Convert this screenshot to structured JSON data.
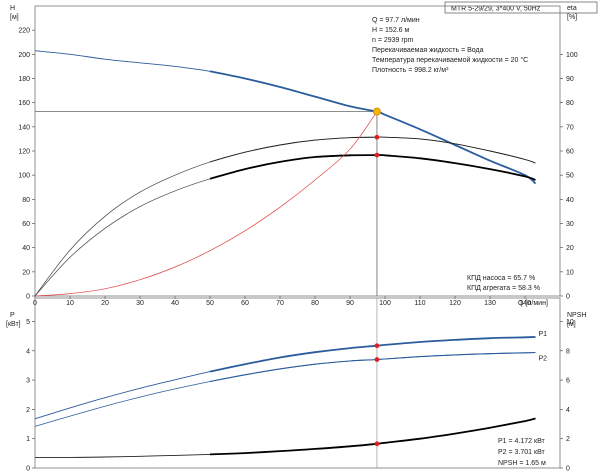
{
  "header": {
    "title": "MTR 5-29/29, 3*400 V, 50Hz"
  },
  "info_top": [
    "Q = 97.7 л/мин",
    "H = 152.6 м",
    "n = 2939 rpm",
    "Перекачиваемая жидкость = Вода",
    "Температура перекачиваемой жидкости = 20 °C",
    "Плотность = 998.2 кг/м³"
  ],
  "info_eff": [
    "КПД насоса = 65.7 %",
    "КПД агрегата = 58.3 %"
  ],
  "info_bottom": [
    "P1 = 4.172 кВт",
    "P2 = 3.701 кВт",
    "NPSH = 1.65 м"
  ],
  "colors": {
    "h_curve": "#2b5c9e",
    "p_curve": "#2b5c9e",
    "eff": "#000000",
    "system": "#e04040",
    "operating_point": "#f5b400",
    "marker": "#e02020"
  },
  "chart_data": [
    {
      "type": "line",
      "name": "top",
      "left_axis": {
        "label_line1": "H",
        "label_line2": "[м]",
        "range": [
          0,
          240
        ],
        "ticks": [
          0,
          20,
          40,
          60,
          80,
          100,
          120,
          140,
          160,
          180,
          200,
          220
        ]
      },
      "right_axis": {
        "label_line1": "eta",
        "label_line2": "[%]",
        "range": [
          0,
          120
        ],
        "ticks": [
          0,
          10,
          20,
          30,
          40,
          50,
          60,
          70,
          80,
          90,
          100
        ]
      },
      "x_axis": {
        "label": "Q [л/мин]",
        "range": [
          0,
          150
        ],
        "ticks": [
          0,
          10,
          20,
          30,
          40,
          50,
          60,
          70,
          80,
          90,
          100,
          110,
          120,
          130,
          140
        ]
      },
      "series": [
        {
          "key": "H",
          "axis": "left",
          "style": "main",
          "x": [
            0,
            10,
            20,
            30,
            40,
            50,
            60,
            70,
            80,
            90,
            97.7,
            100,
            110,
            120,
            130,
            140,
            143
          ],
          "y": [
            203,
            200,
            196,
            193,
            190,
            186,
            180,
            173,
            165,
            157,
            152.6,
            150,
            138,
            125,
            112,
            100,
            93
          ]
        },
        {
          "key": "eta_agg",
          "axis": "right",
          "style": "bold",
          "x": [
            0,
            10,
            20,
            30,
            40,
            50,
            60,
            70,
            80,
            90,
            97.7,
            100,
            110,
            120,
            130,
            140,
            143
          ],
          "y": [
            0,
            16,
            28,
            37,
            43.5,
            48.5,
            52.5,
            55.5,
            57.5,
            58.2,
            58.3,
            58.2,
            57,
            55,
            52.5,
            49.5,
            48
          ]
        },
        {
          "key": "eta_pump",
          "axis": "right",
          "style": "thin",
          "x": [
            0,
            10,
            20,
            30,
            40,
            50,
            60,
            70,
            80,
            90,
            97.7,
            100,
            110,
            120,
            130,
            140,
            143
          ],
          "y": [
            0,
            19,
            33,
            43,
            50,
            55.5,
            59.5,
            62.5,
            64.5,
            65.5,
            65.7,
            65.7,
            65,
            63,
            60,
            56.5,
            55
          ]
        },
        {
          "key": "system",
          "axis": "left",
          "style": "red",
          "x": [
            0,
            10,
            20,
            30,
            40,
            50,
            60,
            70,
            80,
            90,
            97.7
          ],
          "y": [
            0,
            2,
            6,
            13.5,
            24,
            37.5,
            54,
            73.5,
            96,
            121.5,
            152.6
          ]
        }
      ],
      "points": [
        {
          "axis": "left",
          "x": 97.7,
          "y": 152.6,
          "kind": "operating"
        },
        {
          "axis": "right",
          "x": 97.7,
          "y": 65.7,
          "kind": "marker"
        },
        {
          "axis": "right",
          "x": 97.7,
          "y": 58.3,
          "kind": "marker"
        }
      ]
    },
    {
      "type": "line",
      "name": "bottom",
      "left_axis": {
        "label_line1": "P",
        "label_line2": "[кВт]",
        "range": [
          0,
          5.8
        ],
        "ticks": [
          0,
          1,
          2,
          3,
          4,
          5
        ]
      },
      "right_axis": {
        "label_line1": "NPSH",
        "label_line2": "[м]",
        "range": [
          0,
          11.6
        ],
        "ticks": [
          0,
          2,
          4,
          6,
          8,
          10
        ]
      },
      "series": [
        {
          "key": "P1",
          "label": "P1",
          "axis": "left",
          "style": "blue",
          "x": [
            0,
            10,
            20,
            30,
            40,
            50,
            60,
            70,
            80,
            90,
            97.7,
            100,
            110,
            120,
            130,
            140,
            143
          ],
          "y": [
            1.68,
            2.05,
            2.4,
            2.72,
            3.01,
            3.29,
            3.54,
            3.77,
            3.95,
            4.09,
            4.172,
            4.2,
            4.3,
            4.37,
            4.43,
            4.46,
            4.47
          ]
        },
        {
          "key": "P2",
          "label": "P2",
          "axis": "left",
          "style": "blue-thin",
          "x": [
            0,
            10,
            20,
            30,
            40,
            50,
            60,
            70,
            80,
            90,
            97.7,
            100,
            110,
            120,
            130,
            140,
            143
          ],
          "y": [
            1.42,
            1.77,
            2.11,
            2.42,
            2.7,
            2.95,
            3.18,
            3.38,
            3.54,
            3.65,
            3.701,
            3.72,
            3.8,
            3.86,
            3.9,
            3.93,
            3.94
          ]
        },
        {
          "key": "NPSH",
          "axis": "right",
          "style": "black",
          "x": [
            0,
            10,
            20,
            30,
            40,
            50,
            60,
            70,
            80,
            90,
            97.7,
            100,
            110,
            120,
            130,
            140,
            143
          ],
          "y": [
            0.72,
            0.72,
            0.75,
            0.8,
            0.86,
            0.93,
            1.02,
            1.15,
            1.3,
            1.48,
            1.65,
            1.72,
            2.0,
            2.35,
            2.75,
            3.2,
            3.38
          ]
        }
      ],
      "points": [
        {
          "axis": "left",
          "x": 97.7,
          "y": 4.172,
          "kind": "marker"
        },
        {
          "axis": "left",
          "x": 97.7,
          "y": 3.701,
          "kind": "marker"
        },
        {
          "axis": "right",
          "x": 97.7,
          "y": 1.65,
          "kind": "marker"
        }
      ]
    }
  ]
}
